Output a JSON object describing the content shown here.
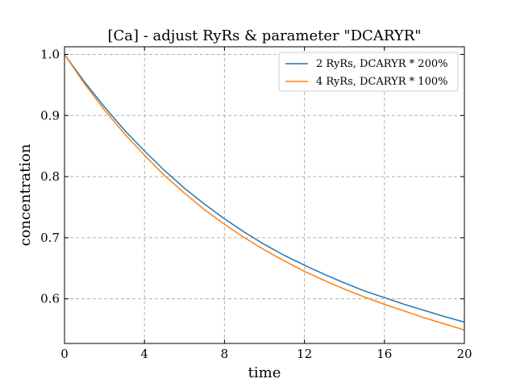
{
  "chart_data": {
    "type": "line",
    "title": "[Ca] - adjust RyRs & parameter \"DCARYR\"",
    "xlabel": "time",
    "ylabel": "concentration",
    "xlim": [
      0,
      20
    ],
    "ylim": [
      0.527,
      1.0125
    ],
    "xticks": [
      0,
      4,
      8,
      12,
      16,
      20
    ],
    "yticks": [
      0.6,
      0.7,
      0.8,
      0.9,
      1.0
    ],
    "xtick_labels": [
      "0",
      "4",
      "8",
      "12",
      "16",
      "20"
    ],
    "ytick_labels": [
      "0.6",
      "0.7",
      "0.8",
      "0.9",
      "1.0"
    ],
    "grid": true,
    "legend_position": "top-right",
    "series": [
      {
        "name": "2 RyRs, DCARYR * 200%",
        "color": "#1f77b4",
        "x": [
          0,
          1,
          2,
          3,
          4,
          5,
          6,
          7,
          8,
          9,
          10,
          11,
          12,
          13,
          14,
          15,
          16,
          17,
          18,
          19,
          20
        ],
        "y": [
          1.0,
          0.955,
          0.914,
          0.876,
          0.842,
          0.81,
          0.781,
          0.755,
          0.731,
          0.709,
          0.689,
          0.671,
          0.655,
          0.64,
          0.626,
          0.613,
          0.602,
          0.591,
          0.581,
          0.571,
          0.562
        ]
      },
      {
        "name": "4 RyRs, DCARYR * 100%",
        "color": "#ff7f0e",
        "x": [
          0,
          1,
          2,
          3,
          4,
          5,
          6,
          7,
          8,
          9,
          10,
          11,
          12,
          13,
          14,
          15,
          16,
          17,
          18,
          19,
          20
        ],
        "y": [
          1.0,
          0.952,
          0.909,
          0.87,
          0.835,
          0.802,
          0.773,
          0.746,
          0.722,
          0.7,
          0.68,
          0.662,
          0.645,
          0.63,
          0.616,
          0.603,
          0.591,
          0.58,
          0.569,
          0.559,
          0.549
        ]
      }
    ]
  }
}
